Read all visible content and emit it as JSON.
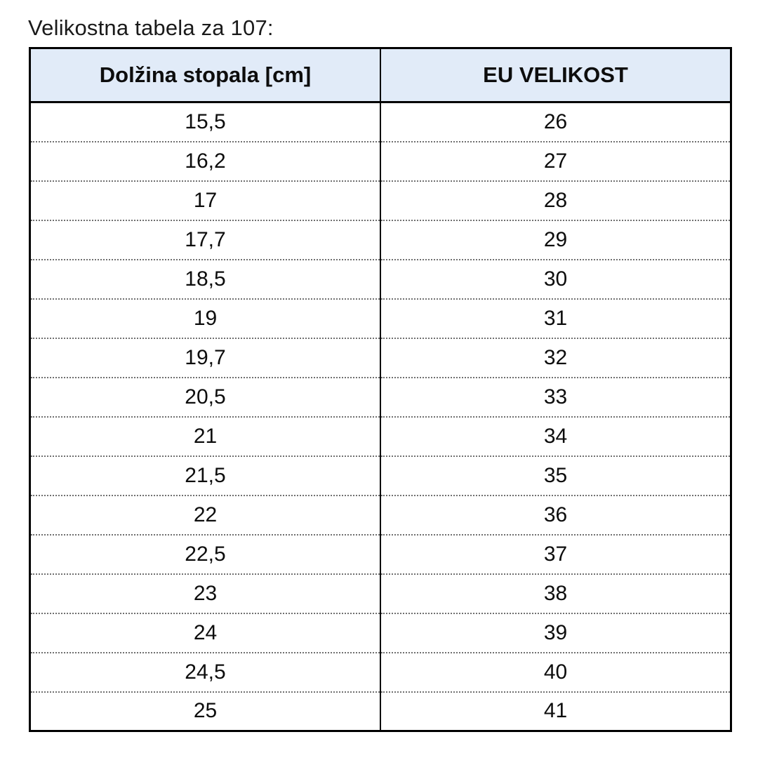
{
  "page": {
    "title": "Velikostna tabela za 107:"
  },
  "table": {
    "columns": [
      {
        "label": "Dolžina stopala [cm]"
      },
      {
        "label": "EU VELIKOST"
      }
    ],
    "rows": [
      {
        "foot_length_cm": "15,5",
        "eu_size": "26"
      },
      {
        "foot_length_cm": "16,2",
        "eu_size": "27"
      },
      {
        "foot_length_cm": "17",
        "eu_size": "28"
      },
      {
        "foot_length_cm": "17,7",
        "eu_size": "29"
      },
      {
        "foot_length_cm": "18,5",
        "eu_size": "30"
      },
      {
        "foot_length_cm": "19",
        "eu_size": "31"
      },
      {
        "foot_length_cm": "19,7",
        "eu_size": "32"
      },
      {
        "foot_length_cm": "20,5",
        "eu_size": "33"
      },
      {
        "foot_length_cm": "21",
        "eu_size": "34"
      },
      {
        "foot_length_cm": "21,5",
        "eu_size": "35"
      },
      {
        "foot_length_cm": "22",
        "eu_size": "36"
      },
      {
        "foot_length_cm": "22,5",
        "eu_size": "37"
      },
      {
        "foot_length_cm": "23",
        "eu_size": "38"
      },
      {
        "foot_length_cm": "24",
        "eu_size": "39"
      },
      {
        "foot_length_cm": "24,5",
        "eu_size": "40"
      },
      {
        "foot_length_cm": "25",
        "eu_size": "41"
      }
    ]
  },
  "colors": {
    "header_background": "#e1ebf8",
    "border": "#000000",
    "row_divider_dotted": "#707070",
    "text": "#0d0d0d"
  }
}
